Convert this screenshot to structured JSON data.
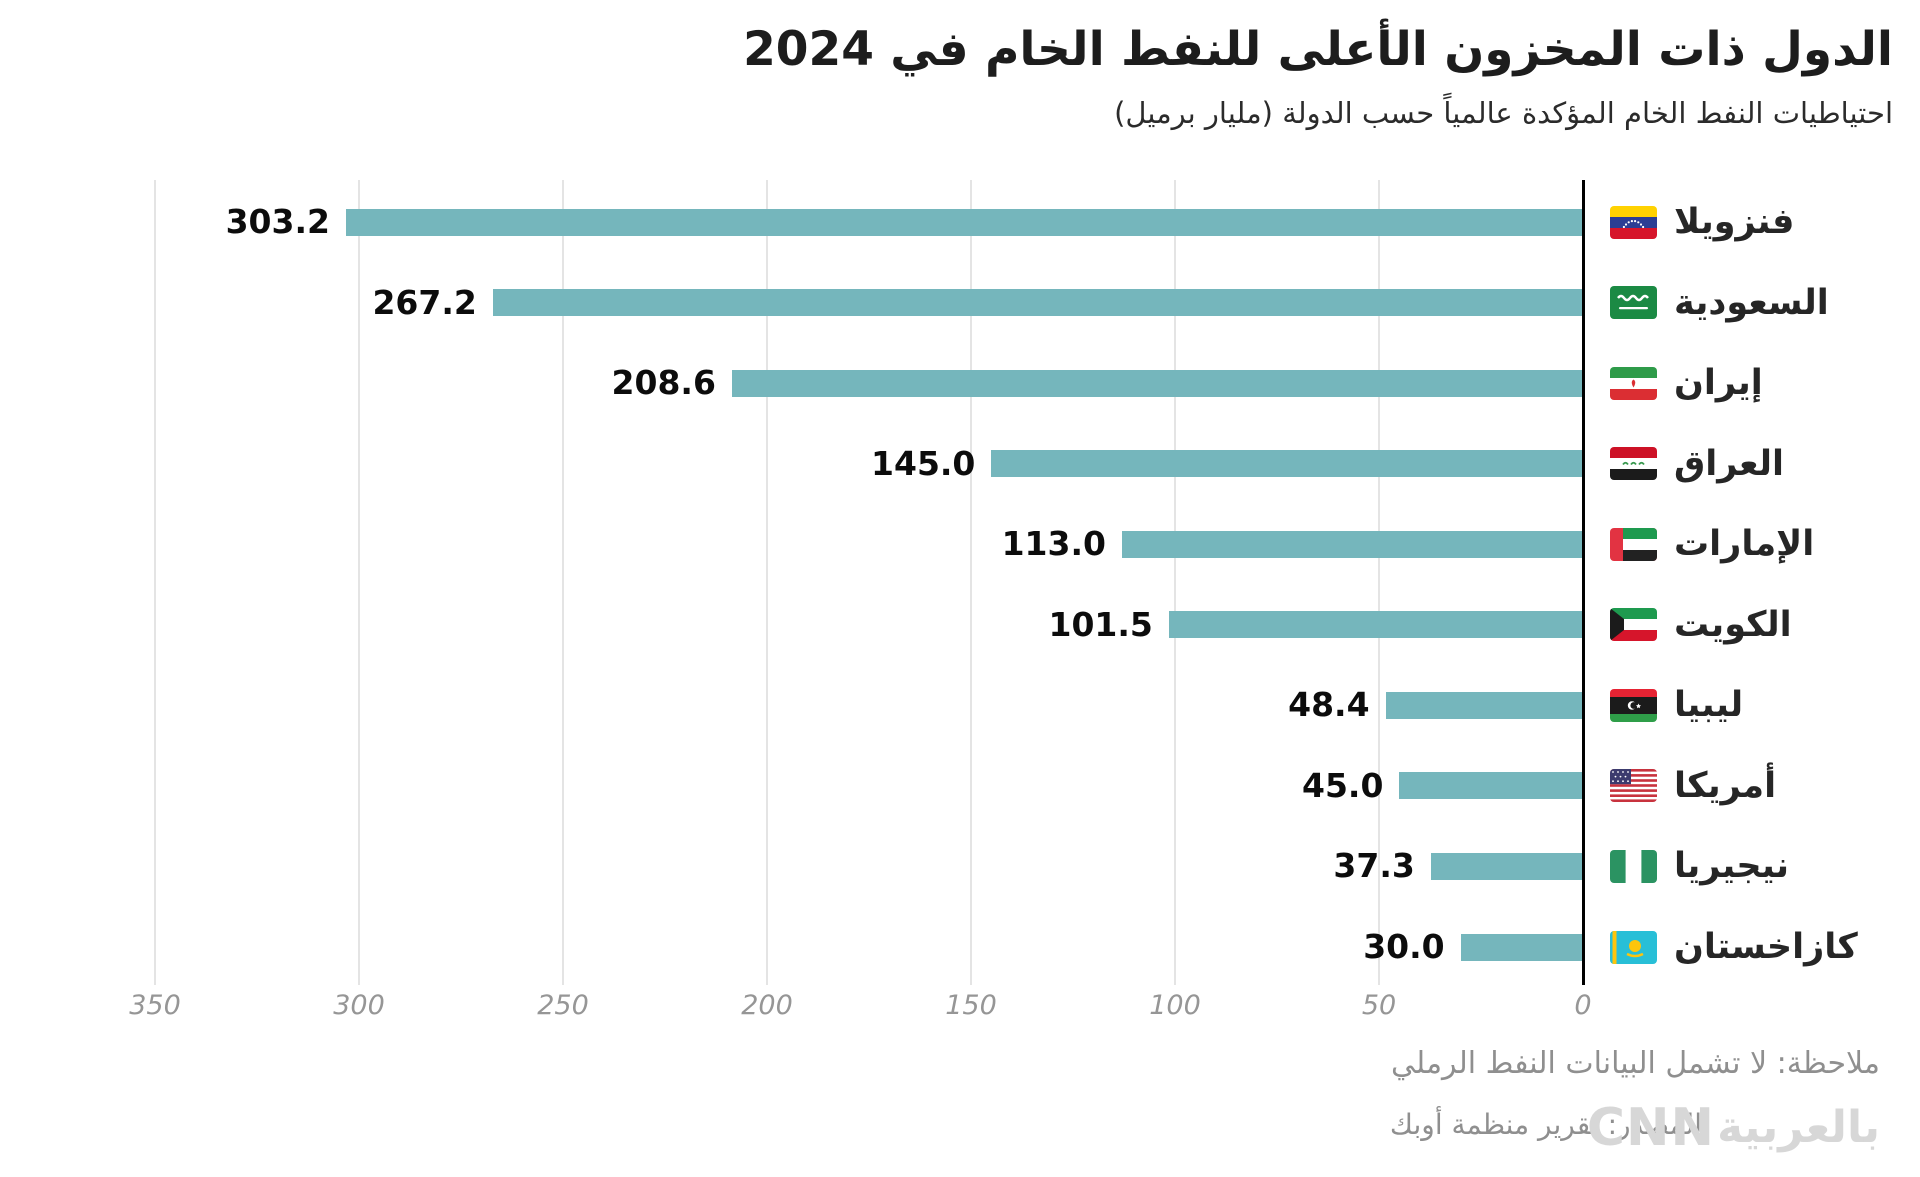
{
  "title": "الدول ذات المخزون الأعلى للنفط الخام في 2024",
  "subtitle": "احتياطيات النفط الخام المؤكدة عالمياً حسب الدولة (مليار برميل)",
  "note": "ملاحظة: لا تشمل البيانات النفط الرملي",
  "source": "المصدر: تقرير منظمة أوبك",
  "logo": {
    "brand": "CNN",
    "suffix": "بالعربية"
  },
  "colors": {
    "bar": "#75b6bc",
    "axis": "#000000",
    "grid": "#e4e4e4",
    "tick_text": "#969696",
    "value_text": "#0c0c0c",
    "label_text": "#262626",
    "muted_text": "#8f8f8f"
  },
  "chart_data": {
    "type": "bar",
    "orientation": "horizontal-rtl",
    "title": "الدول ذات المخزون الأعلى للنفط الخام في 2024",
    "subtitle": "احتياطيات النفط الخام المؤكدة عالمياً حسب الدولة (مليار برميل)",
    "unit": "مليار برميل",
    "xlim": [
      0,
      350
    ],
    "grid": true,
    "tick_labels": [
      "350",
      "300",
      "250",
      "200",
      "150",
      "100",
      "50",
      "0"
    ],
    "categories": [
      "فنزويلا",
      "السعودية",
      "إيران",
      "العراق",
      "الإمارات",
      "الكويت",
      "ليبيا",
      "أمريكا",
      "نيجيريا",
      "كازاخستان"
    ],
    "values": [
      303.2,
      267.2,
      208.6,
      145.0,
      113.0,
      101.5,
      48.4,
      45.0,
      37.3,
      30.0
    ],
    "value_labels": [
      "303.2",
      "267.2",
      "208.6",
      "145.0",
      "113.0",
      "101.5",
      "48.4",
      "45.0",
      "37.3",
      "30.0"
    ],
    "flags": [
      "venezuela",
      "saudi-arabia",
      "iran",
      "iraq",
      "uae",
      "kuwait",
      "libya",
      "usa",
      "nigeria",
      "kazakhstan"
    ]
  }
}
